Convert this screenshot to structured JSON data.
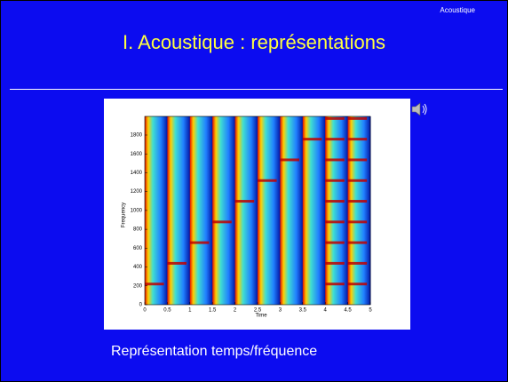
{
  "header": {
    "section": "Acoustique",
    "title": "I. Acoustique : représentations"
  },
  "figure": {
    "x_label": "Time",
    "y_label": "Frequency",
    "xticks": [
      0,
      0.5,
      1,
      1.5,
      2,
      2.5,
      3,
      3.5,
      4,
      4.5,
      5
    ],
    "yticks": [
      0,
      200,
      400,
      600,
      800,
      1000,
      1200,
      1400,
      1600,
      1800
    ]
  },
  "caption": "Représentation temps/fréquence"
}
